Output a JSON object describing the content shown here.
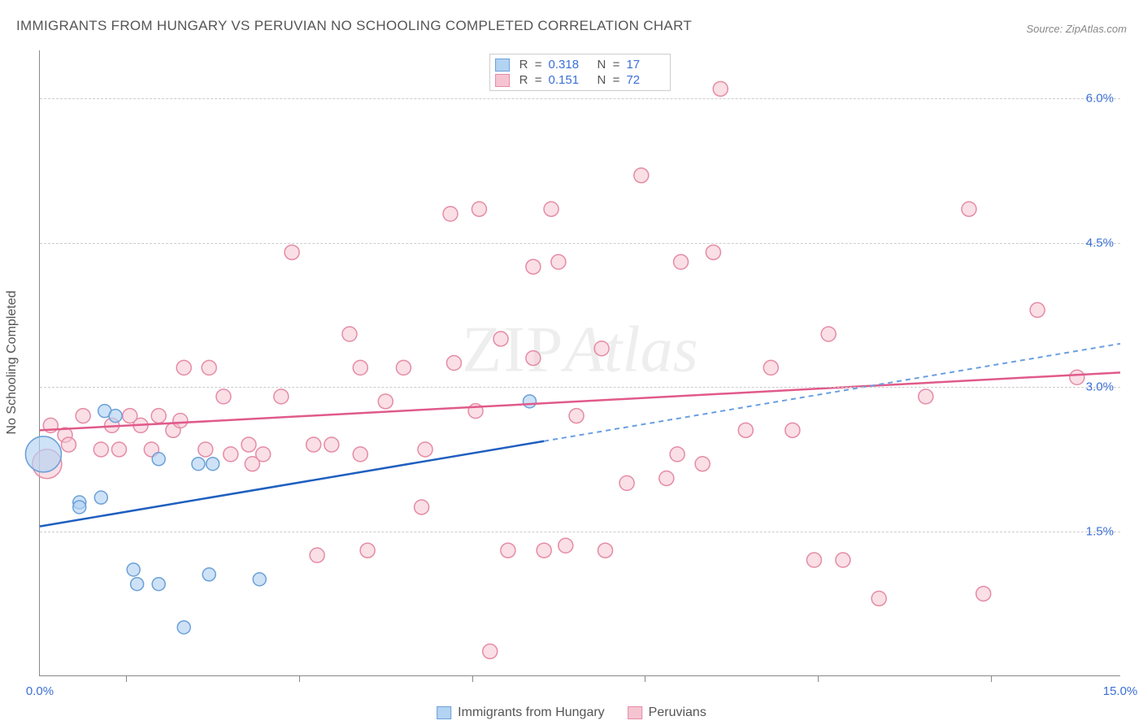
{
  "title": "IMMIGRANTS FROM HUNGARY VS PERUVIAN NO SCHOOLING COMPLETED CORRELATION CHART",
  "source_prefix": "Source: ",
  "source_name": "ZipAtlas.com",
  "y_axis_label": "No Schooling Completed",
  "watermark_zip": "ZIP",
  "watermark_atlas": "Atlas",
  "chart": {
    "type": "scatter",
    "xlim": [
      0.0,
      15.0
    ],
    "ylim": [
      0.0,
      6.5
    ],
    "x_ticks": [
      0.0,
      15.0
    ],
    "x_tick_labels": [
      "0.0%",
      "15.0%"
    ],
    "x_minor_ticks": [
      1.2,
      3.6,
      6.0,
      8.4,
      10.8,
      13.2
    ],
    "y_ticks": [
      1.5,
      3.0,
      4.5,
      6.0
    ],
    "y_tick_labels": [
      "1.5%",
      "3.0%",
      "4.5%",
      "6.0%"
    ],
    "grid_color": "#cccccc",
    "background_color": "#ffffff",
    "axis_color": "#888888",
    "tick_label_color": "#3b6fd6",
    "series": {
      "hungary": {
        "label": "Immigrants from Hungary",
        "fill": "#b3d3f2",
        "fill_opacity": 0.65,
        "stroke": "#6aa0d8",
        "line_color": "#1f5fbf",
        "line_dash_color": "#6a9fe0",
        "R": "0.318",
        "N": "17",
        "trend": {
          "y_at_x0": 1.55,
          "y_at_x15": 3.45,
          "solid_until_x": 7.0
        },
        "points": [
          {
            "x": 0.05,
            "y": 2.3,
            "r": 22
          },
          {
            "x": 0.55,
            "y": 1.8,
            "r": 8
          },
          {
            "x": 0.55,
            "y": 1.75,
            "r": 8
          },
          {
            "x": 0.85,
            "y": 1.85,
            "r": 8
          },
          {
            "x": 0.9,
            "y": 2.75,
            "r": 8
          },
          {
            "x": 1.05,
            "y": 2.7,
            "r": 8
          },
          {
            "x": 1.3,
            "y": 1.1,
            "r": 8
          },
          {
            "x": 1.35,
            "y": 0.95,
            "r": 8
          },
          {
            "x": 1.65,
            "y": 0.95,
            "r": 8
          },
          {
            "x": 1.65,
            "y": 2.25,
            "r": 8
          },
          {
            "x": 2.0,
            "y": 0.5,
            "r": 8
          },
          {
            "x": 2.2,
            "y": 2.2,
            "r": 8
          },
          {
            "x": 2.35,
            "y": 1.05,
            "r": 8
          },
          {
            "x": 2.4,
            "y": 2.2,
            "r": 8
          },
          {
            "x": 3.05,
            "y": 1.0,
            "r": 8
          },
          {
            "x": 6.8,
            "y": 2.85,
            "r": 8
          }
        ]
      },
      "peruvian": {
        "label": "Peruvians",
        "fill": "#f6c4d1",
        "fill_opacity": 0.55,
        "stroke": "#e58ba5",
        "line_color": "#e05a8a",
        "R": "0.151",
        "N": "72",
        "trend": {
          "y_at_x0": 2.55,
          "y_at_x15": 3.15
        },
        "points": [
          {
            "x": 0.1,
            "y": 2.2,
            "r": 18
          },
          {
            "x": 0.15,
            "y": 2.6,
            "r": 9
          },
          {
            "x": 0.35,
            "y": 2.5,
            "r": 9
          },
          {
            "x": 0.4,
            "y": 2.4,
            "r": 9
          },
          {
            "x": 0.6,
            "y": 2.7,
            "r": 9
          },
          {
            "x": 0.85,
            "y": 2.35,
            "r": 9
          },
          {
            "x": 1.0,
            "y": 2.6,
            "r": 9
          },
          {
            "x": 1.1,
            "y": 2.35,
            "r": 9
          },
          {
            "x": 1.25,
            "y": 2.7,
            "r": 9
          },
          {
            "x": 1.4,
            "y": 2.6,
            "r": 9
          },
          {
            "x": 1.55,
            "y": 2.35,
            "r": 9
          },
          {
            "x": 1.65,
            "y": 2.7,
            "r": 9
          },
          {
            "x": 1.85,
            "y": 2.55,
            "r": 9
          },
          {
            "x": 1.95,
            "y": 2.65,
            "r": 9
          },
          {
            "x": 2.0,
            "y": 3.2,
            "r": 9
          },
          {
            "x": 2.3,
            "y": 2.35,
            "r": 9
          },
          {
            "x": 2.35,
            "y": 3.2,
            "r": 9
          },
          {
            "x": 2.55,
            "y": 2.9,
            "r": 9
          },
          {
            "x": 2.65,
            "y": 2.3,
            "r": 9
          },
          {
            "x": 2.9,
            "y": 2.4,
            "r": 9
          },
          {
            "x": 2.95,
            "y": 2.2,
            "r": 9
          },
          {
            "x": 3.1,
            "y": 2.3,
            "r": 9
          },
          {
            "x": 3.35,
            "y": 2.9,
            "r": 9
          },
          {
            "x": 3.5,
            "y": 4.4,
            "r": 9
          },
          {
            "x": 3.8,
            "y": 2.4,
            "r": 9
          },
          {
            "x": 3.85,
            "y": 1.25,
            "r": 9
          },
          {
            "x": 4.05,
            "y": 2.4,
            "r": 9
          },
          {
            "x": 4.3,
            "y": 3.55,
            "r": 9
          },
          {
            "x": 4.45,
            "y": 3.2,
            "r": 9
          },
          {
            "x": 4.45,
            "y": 2.3,
            "r": 9
          },
          {
            "x": 4.55,
            "y": 1.3,
            "r": 9
          },
          {
            "x": 4.8,
            "y": 2.85,
            "r": 9
          },
          {
            "x": 5.05,
            "y": 3.2,
            "r": 9
          },
          {
            "x": 5.3,
            "y": 1.75,
            "r": 9
          },
          {
            "x": 5.35,
            "y": 2.35,
            "r": 9
          },
          {
            "x": 5.7,
            "y": 4.8,
            "r": 9
          },
          {
            "x": 5.75,
            "y": 3.25,
            "r": 9
          },
          {
            "x": 6.05,
            "y": 2.75,
            "r": 9
          },
          {
            "x": 6.1,
            "y": 4.85,
            "r": 9
          },
          {
            "x": 6.25,
            "y": 0.25,
            "r": 9
          },
          {
            "x": 6.4,
            "y": 3.5,
            "r": 9
          },
          {
            "x": 6.5,
            "y": 1.3,
            "r": 9
          },
          {
            "x": 6.85,
            "y": 3.3,
            "r": 9
          },
          {
            "x": 6.85,
            "y": 4.25,
            "r": 9
          },
          {
            "x": 7.0,
            "y": 1.3,
            "r": 9
          },
          {
            "x": 7.1,
            "y": 4.85,
            "r": 9
          },
          {
            "x": 7.2,
            "y": 4.3,
            "r": 9
          },
          {
            "x": 7.3,
            "y": 1.35,
            "r": 9
          },
          {
            "x": 7.45,
            "y": 2.7,
            "r": 9
          },
          {
            "x": 7.8,
            "y": 3.4,
            "r": 9
          },
          {
            "x": 7.85,
            "y": 1.3,
            "r": 9
          },
          {
            "x": 8.15,
            "y": 2.0,
            "r": 9
          },
          {
            "x": 8.35,
            "y": 5.2,
            "r": 9
          },
          {
            "x": 8.7,
            "y": 2.05,
            "r": 9
          },
          {
            "x": 8.85,
            "y": 2.3,
            "r": 9
          },
          {
            "x": 8.9,
            "y": 4.3,
            "r": 9
          },
          {
            "x": 9.2,
            "y": 2.2,
            "r": 9
          },
          {
            "x": 9.35,
            "y": 4.4,
            "r": 9
          },
          {
            "x": 9.45,
            "y": 6.1,
            "r": 9
          },
          {
            "x": 9.8,
            "y": 2.55,
            "r": 9
          },
          {
            "x": 10.15,
            "y": 3.2,
            "r": 9
          },
          {
            "x": 10.45,
            "y": 2.55,
            "r": 9
          },
          {
            "x": 10.75,
            "y": 1.2,
            "r": 9
          },
          {
            "x": 10.95,
            "y": 3.55,
            "r": 9
          },
          {
            "x": 11.15,
            "y": 1.2,
            "r": 9
          },
          {
            "x": 11.65,
            "y": 0.8,
            "r": 9
          },
          {
            "x": 12.3,
            "y": 2.9,
            "r": 9
          },
          {
            "x": 12.9,
            "y": 4.85,
            "r": 9
          },
          {
            "x": 13.1,
            "y": 0.85,
            "r": 9
          },
          {
            "x": 13.85,
            "y": 3.8,
            "r": 9
          },
          {
            "x": 14.4,
            "y": 3.1,
            "r": 9
          }
        ]
      }
    }
  }
}
